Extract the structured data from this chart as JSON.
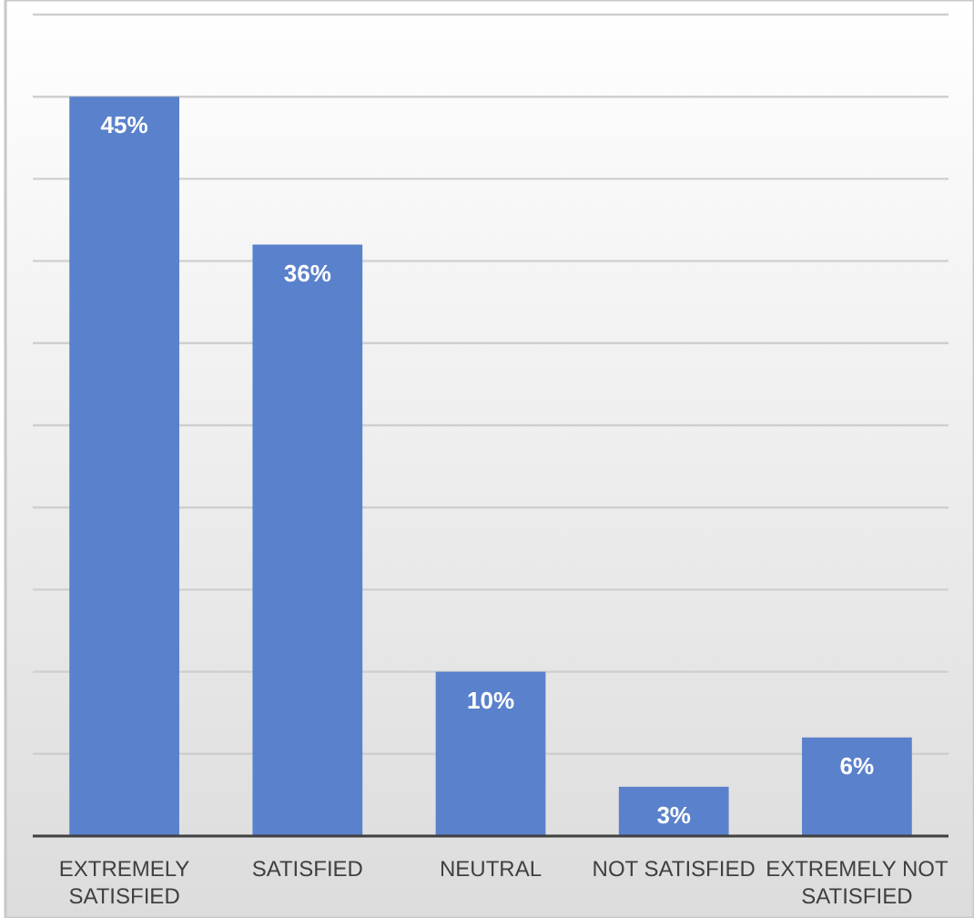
{
  "chart_data": {
    "type": "bar",
    "categories": [
      "EXTREMELY SATISFIED",
      "SATISFIED",
      "NEUTRAL",
      "NOT SATISFIED",
      "EXTREMELY NOT SATISFIED"
    ],
    "values": [
      45,
      36,
      10,
      3,
      6
    ],
    "value_labels": [
      "45%",
      "36%",
      "10%",
      "3%",
      "6%"
    ],
    "color": "#5a81cb",
    "ylim": [
      0,
      50
    ],
    "yticks": [
      {
        "value": 0,
        "label": null
      },
      {
        "value": 5,
        "label": null
      },
      {
        "value": 10,
        "label": null
      },
      {
        "value": 15,
        "label": null
      },
      {
        "value": 20,
        "label": null
      },
      {
        "value": 25,
        "label": null
      },
      {
        "value": 30,
        "label": null
      },
      {
        "value": 35,
        "label": null
      },
      {
        "value": 40,
        "label": null
      },
      {
        "value": 45,
        "label": null
      },
      {
        "value": 50,
        "label": null
      }
    ],
    "grid": "y",
    "tick_labels": "x"
  }
}
